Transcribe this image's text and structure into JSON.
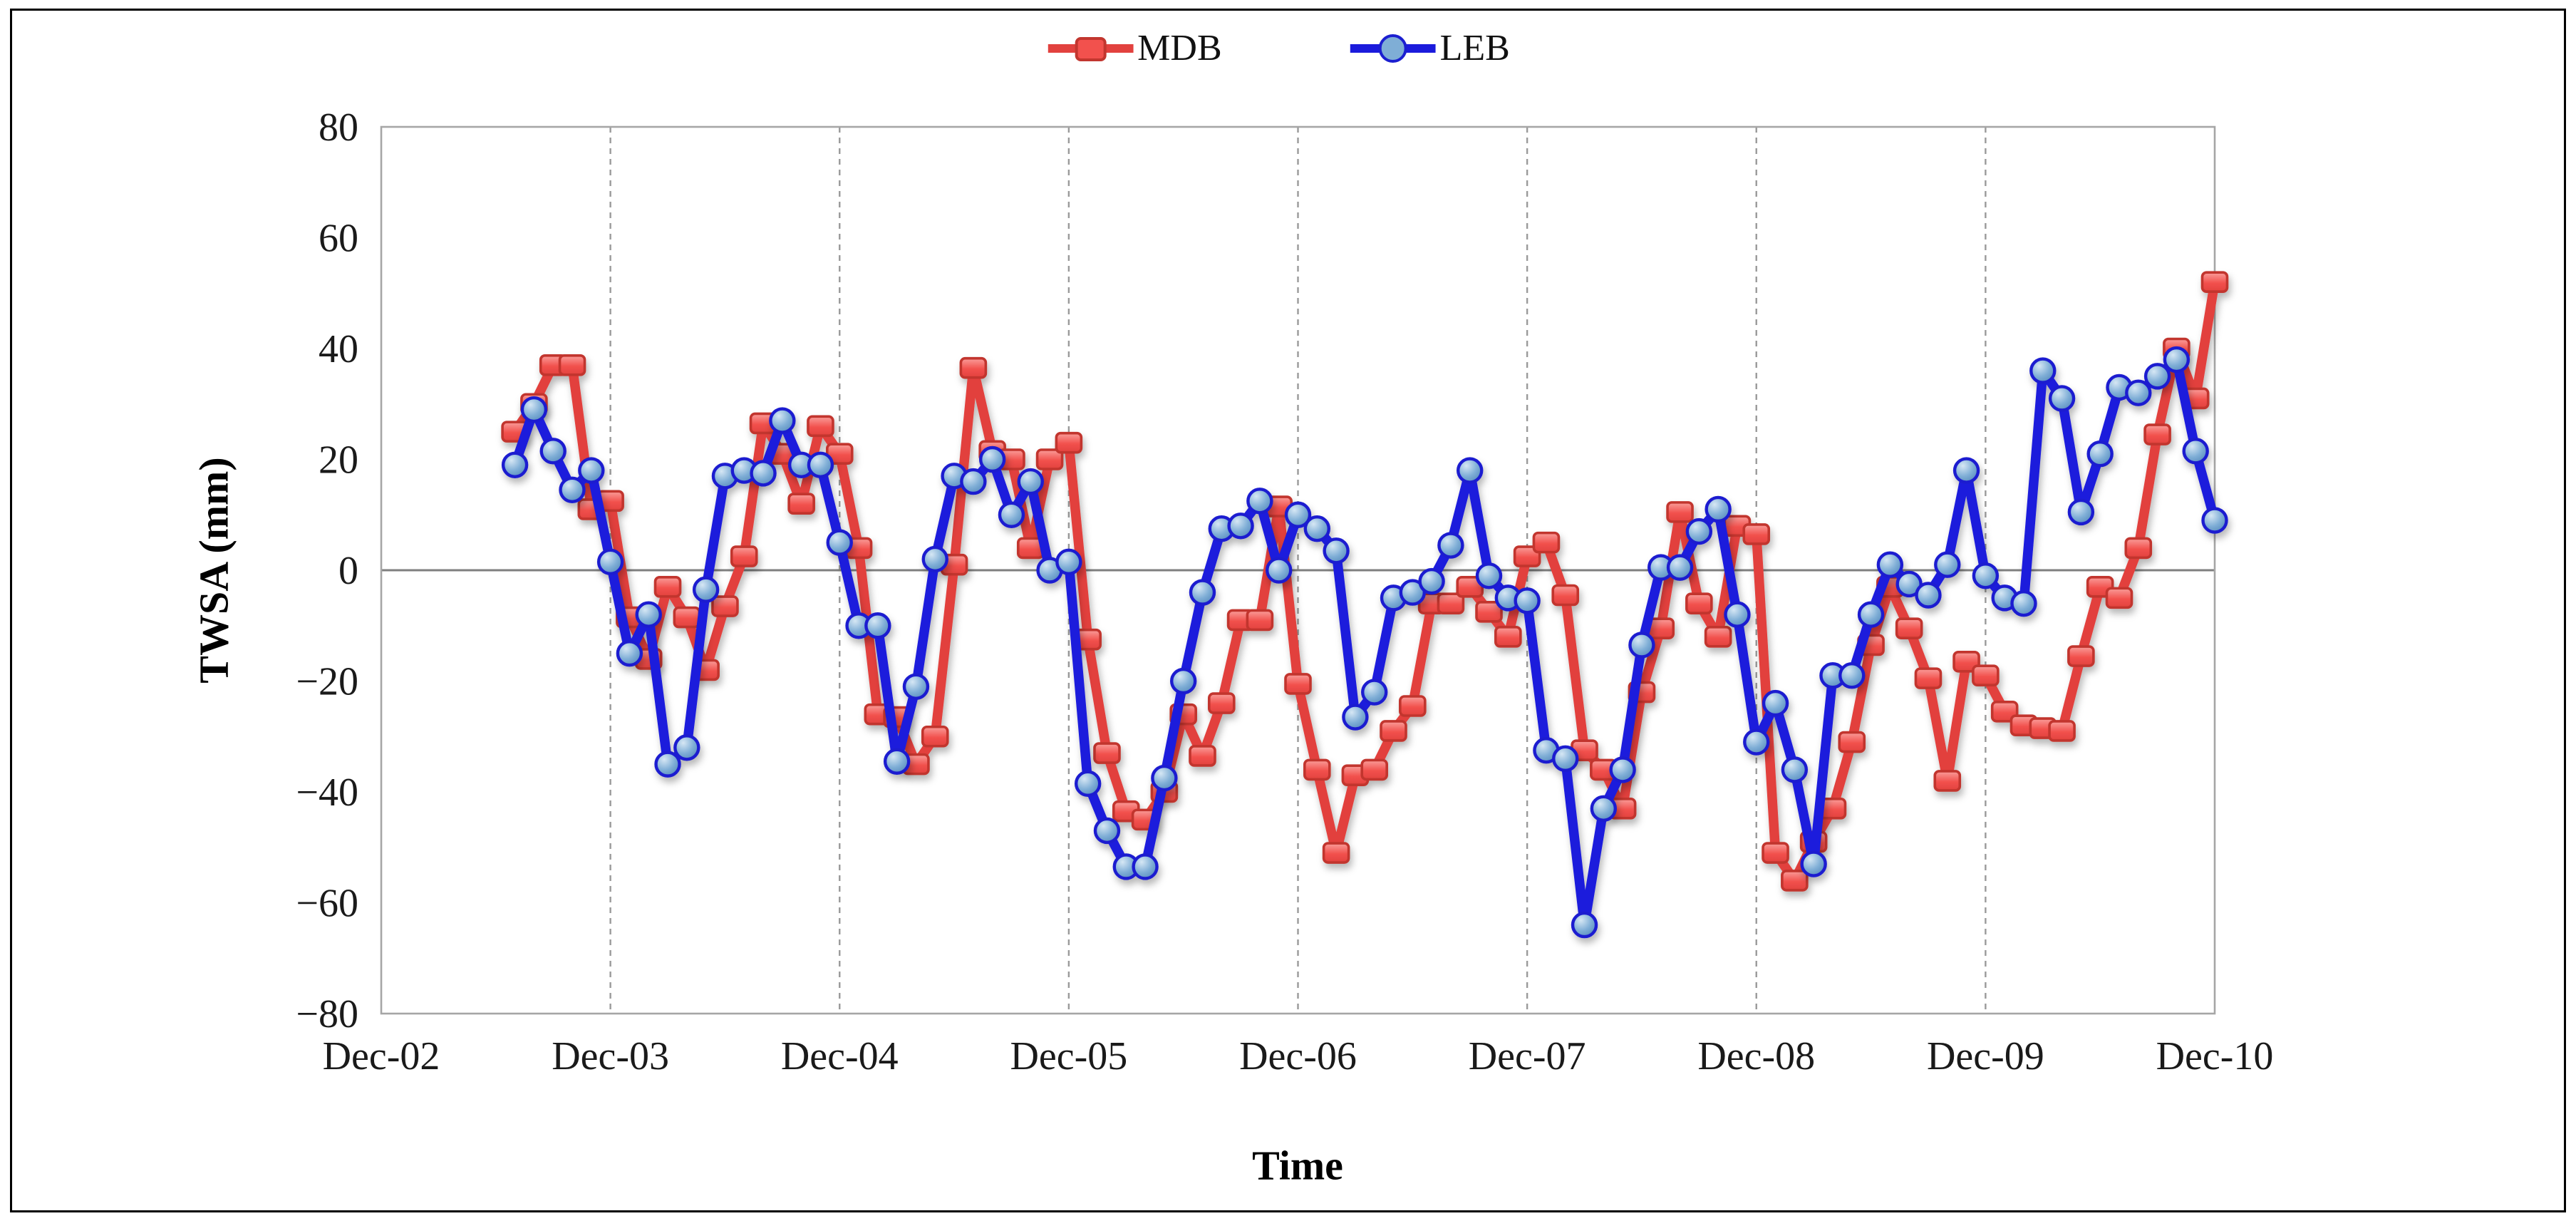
{
  "figure": {
    "background_color": "#ffffff",
    "border_color": "#000000"
  },
  "axes": {
    "y_label": "TWSA (mm)",
    "x_label": "Time",
    "y_ticks": [
      80,
      60,
      40,
      20,
      0,
      -20,
      -40,
      -60,
      -80
    ],
    "x_ticks": [
      "Dec-02",
      "Dec-03",
      "Dec-04",
      "Dec-05",
      "Dec-06",
      "Dec-07",
      "Dec-08",
      "Dec-09",
      "Dec-10"
    ]
  },
  "legend": {
    "items": [
      {
        "label": "MDB",
        "icon": "red-square-marker-icon",
        "color": "#E8403C"
      },
      {
        "label": "LEB",
        "icon": "blue-circle-marker-icon",
        "color": "#1B1BDC"
      }
    ]
  },
  "chart_data": {
    "type": "line",
    "title": "",
    "xlabel": "Time",
    "ylabel": "TWSA (mm)",
    "ylim": [
      -80,
      80
    ],
    "xlim": [
      "Dec-02",
      "Dec-10"
    ],
    "grid": "vertical-dashed-yearly-only",
    "zero_line": true,
    "legend_position": "top-center",
    "x": [
      "Jul-03",
      "Aug-03",
      "Sep-03",
      "Oct-03",
      "Nov-03",
      "Dec-03",
      "Jan-04",
      "Feb-04",
      "Mar-04",
      "Apr-04",
      "May-04",
      "Jun-04",
      "Jul-04",
      "Aug-04",
      "Sep-04",
      "Oct-04",
      "Nov-04",
      "Dec-04",
      "Jan-05",
      "Feb-05",
      "Mar-05",
      "Apr-05",
      "May-05",
      "Jun-05",
      "Jul-05",
      "Aug-05",
      "Sep-05",
      "Oct-05",
      "Nov-05",
      "Dec-05",
      "Jan-06",
      "Feb-06",
      "Mar-06",
      "Apr-06",
      "May-06",
      "Jun-06",
      "Jul-06",
      "Aug-06",
      "Sep-06",
      "Oct-06",
      "Nov-06",
      "Dec-06",
      "Jan-07",
      "Feb-07",
      "Mar-07",
      "Apr-07",
      "May-07",
      "Jun-07",
      "Jul-07",
      "Aug-07",
      "Sep-07",
      "Oct-07",
      "Nov-07",
      "Dec-07",
      "Jan-08",
      "Feb-08",
      "Mar-08",
      "Apr-08",
      "May-08",
      "Jun-08",
      "Jul-08",
      "Aug-08",
      "Sep-08",
      "Oct-08",
      "Nov-08",
      "Dec-08",
      "Jan-09",
      "Feb-09",
      "Mar-09",
      "Apr-09",
      "May-09",
      "Jun-09",
      "Jul-09",
      "Aug-09",
      "Sep-09",
      "Oct-09",
      "Nov-09",
      "Dec-09",
      "Jan-10",
      "Feb-10",
      "Mar-10",
      "Apr-10",
      "May-10",
      "Jun-10",
      "Jul-10",
      "Aug-10",
      "Sep-10",
      "Oct-10",
      "Nov-10",
      "Dec-10"
    ],
    "series": [
      {
        "name": "MDB",
        "marker": "square",
        "line_color": "#E2413E",
        "marker_fill": "#F2514D",
        "marker_fill_light": "#FA9E9B",
        "marker_stroke": "#C2362F",
        "values": [
          25,
          30,
          37,
          37,
          11,
          12.5,
          -8.5,
          -16,
          -3,
          -8.5,
          -18,
          -6.5,
          2.5,
          26.5,
          21,
          12,
          26,
          21,
          4,
          -26,
          -26.5,
          -35,
          -30,
          1,
          36.5,
          21.5,
          20,
          4,
          20,
          23,
          -12.5,
          -33,
          -43.5,
          -45,
          -40,
          -26,
          -33.5,
          -24,
          -9,
          -9,
          11.5,
          -20.5,
          -36,
          -51,
          -37,
          -36,
          -29,
          -24.5,
          -6,
          -6,
          -3,
          -7.5,
          -12,
          2.5,
          5,
          -4.5,
          -32.5,
          -36,
          -43,
          -22,
          -10.5,
          10.5,
          -6,
          -12,
          8,
          6.5,
          -51,
          -56,
          -49,
          -43,
          -31,
          -13.5,
          -3,
          -10.5,
          -19.5,
          -38,
          -16.5,
          -19,
          -25.5,
          -28,
          -28.5,
          -29,
          -15.5,
          -3,
          -5,
          4,
          24.5,
          40,
          31,
          52
        ]
      },
      {
        "name": "LEB",
        "marker": "circle",
        "line_color": "#1B1BDC",
        "marker_fill": "#7FAED6",
        "marker_fill_light": "#D6E7F4",
        "marker_stroke": "#1B1FD0",
        "values": [
          19,
          29,
          21.5,
          14.5,
          18,
          1.5,
          -15,
          -8,
          -35,
          -32,
          -3.5,
          17,
          18,
          17.5,
          27,
          19,
          19,
          5,
          -10,
          -10,
          -34.5,
          -21,
          2,
          17,
          16,
          20,
          10,
          16,
          0,
          1.5,
          -38.5,
          -47,
          -53.5,
          -53.5,
          -37.5,
          -20,
          -4,
          7.5,
          8,
          12.5,
          0,
          10,
          7.5,
          3.5,
          -26.5,
          -22,
          -5,
          -4,
          -2,
          4.5,
          18,
          -1,
          -5,
          -5.5,
          -32.5,
          -34,
          -64,
          -43,
          -36,
          -13.5,
          0.5,
          0.5,
          7,
          11,
          -8,
          -31,
          -24,
          -36,
          -53,
          -19,
          -19,
          -8,
          1,
          -2.5,
          -4.5,
          1,
          18,
          -1,
          -5,
          -6,
          36,
          31,
          10.5,
          21,
          33,
          32,
          35,
          38,
          21.5,
          9
        ]
      }
    ]
  }
}
